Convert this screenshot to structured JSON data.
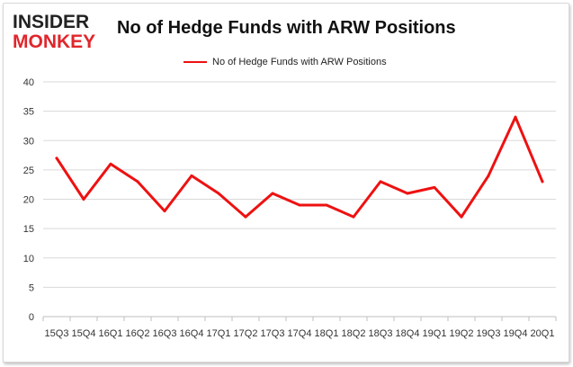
{
  "brand": {
    "line1": "INSIDER",
    "line2": "MONKEY"
  },
  "colors": {
    "series": "#ee1111",
    "grid": "#d9d9d9",
    "axis": "#bfbfbf",
    "brand_red": "#e0262c"
  },
  "chart_data": {
    "type": "line",
    "title": "No of Hedge Funds with ARW Positions",
    "legend_position": "top-center",
    "grid": true,
    "ylim": [
      0,
      40
    ],
    "yticks": [
      0,
      5,
      10,
      15,
      20,
      25,
      30,
      35,
      40
    ],
    "categories": [
      "15Q3",
      "15Q4",
      "16Q1",
      "16Q2",
      "16Q3",
      "16Q4",
      "17Q1",
      "17Q2",
      "17Q3",
      "17Q4",
      "18Q1",
      "18Q2",
      "18Q3",
      "18Q4",
      "19Q1",
      "19Q2",
      "19Q3",
      "19Q4",
      "20Q1"
    ],
    "series": [
      {
        "name": "No of Hedge Funds with ARW Positions",
        "values": [
          27,
          20,
          26,
          23,
          18,
          24,
          21,
          17,
          21,
          19,
          19,
          17,
          23,
          21,
          22,
          17,
          24,
          34,
          23
        ]
      }
    ]
  }
}
